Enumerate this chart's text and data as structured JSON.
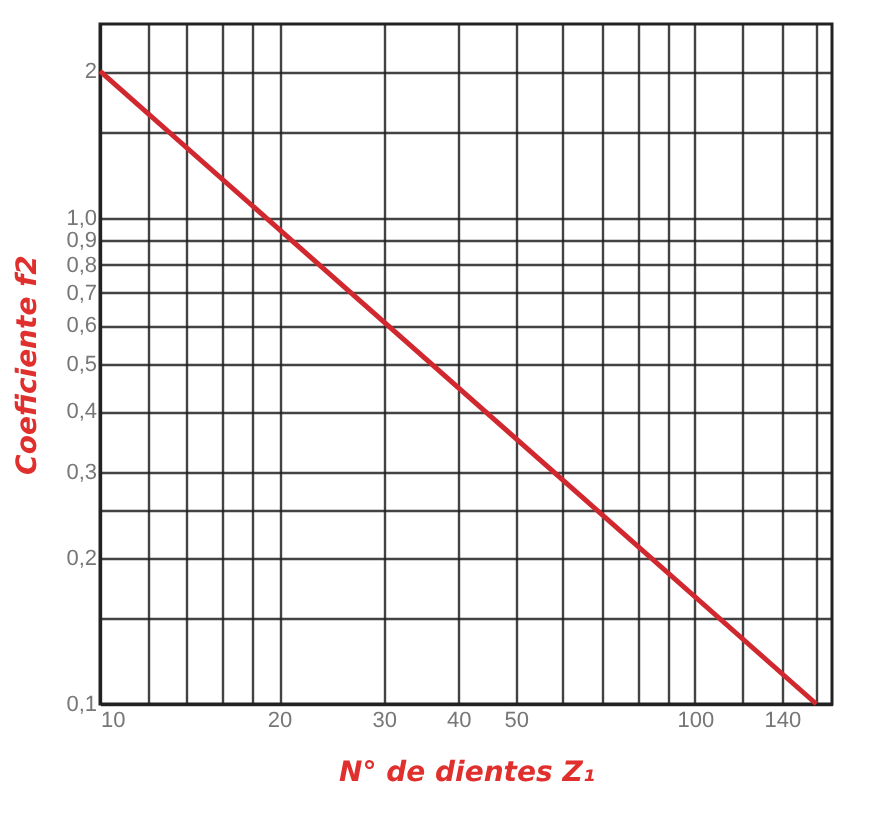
{
  "chart_data": {
    "type": "line",
    "xlabel": "N° de dientes Z₁",
    "ylabel": "Coeficiente f2",
    "log": "xy",
    "grid": true,
    "marker": "none",
    "line_style": "solid",
    "x": [
      10,
      160
    ],
    "series": [
      {
        "color": "#d0282e",
        "values": [
          2,
          0.1
        ]
      }
    ],
    "xlim": [
      10,
      170
    ],
    "ylim": [
      0.1,
      2.5
    ],
    "xticks": [
      10,
      {
        "value": 12,
        "label": null
      },
      {
        "value": 14,
        "label": null
      },
      {
        "value": 16,
        "label": null
      },
      {
        "value": 18,
        "label": null
      },
      20,
      30,
      40,
      50,
      {
        "value": 60,
        "label": null
      },
      {
        "value": 70,
        "label": null
      },
      {
        "value": 80,
        "label": null
      },
      {
        "value": 90,
        "label": null
      },
      100,
      {
        "value": 120,
        "label": null
      },
      140,
      {
        "value": 160,
        "label": null
      }
    ],
    "yticks": [
      {
        "value": 0.1,
        "label": "0,1"
      },
      {
        "value": 0.15,
        "label": null
      },
      {
        "value": 0.2,
        "label": "0,2"
      },
      {
        "value": 0.25,
        "label": null
      },
      {
        "value": 0.3,
        "label": "0,3"
      },
      {
        "value": 0.4,
        "label": "0,4"
      },
      {
        "value": 0.5,
        "label": "0,5"
      },
      {
        "value": 0.6,
        "label": "0,6"
      },
      {
        "value": 0.7,
        "label": "0,7"
      },
      {
        "value": 0.8,
        "label": "0,8"
      },
      {
        "value": 0.9,
        "label": "0,9"
      },
      {
        "value": 1,
        "label": "1,0"
      },
      {
        "value": 1.5,
        "label": null
      },
      {
        "value": 2,
        "label": "2"
      }
    ]
  }
}
